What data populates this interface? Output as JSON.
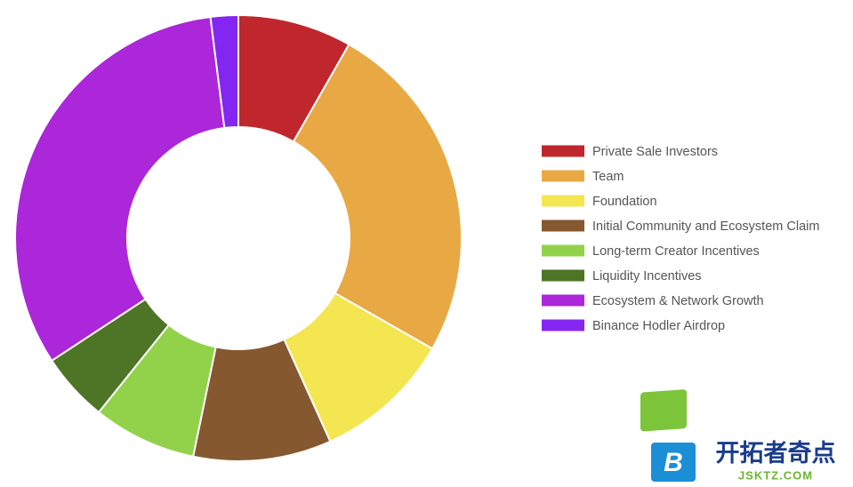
{
  "chart_data": {
    "type": "donut",
    "categories": [
      "Private Sale Investors",
      "Team",
      "Foundation",
      "Initial Community and Ecosystem Claim",
      "Long-term Creator Incentives",
      "Liquidity Incentives",
      "Ecosystem & Network Growth",
      "Binance Hodler Airdrop"
    ],
    "values": [
      8.25,
      25,
      10,
      10,
      7.5,
      5,
      32.25,
      2
    ],
    "colors": [
      "#c0272d",
      "#e8a945",
      "#f3e651",
      "#85582f",
      "#92d24a",
      "#4e7425",
      "#ab27d9",
      "#8426f1"
    ],
    "legend": "right"
  },
  "watermark": {
    "logo_letter": "B",
    "text": "开拓者奇点",
    "url": "JSKTZ.COM"
  }
}
